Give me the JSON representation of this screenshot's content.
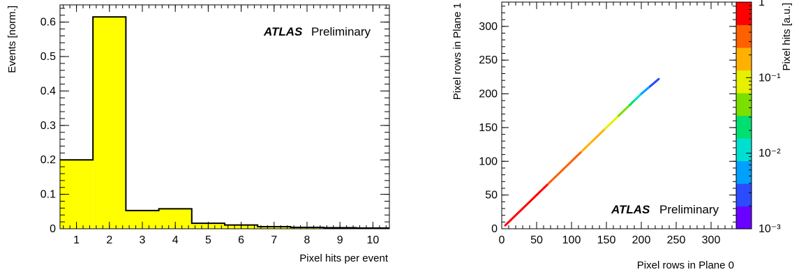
{
  "chart_data": [
    {
      "type": "bar",
      "xlabel": "Pixel hits per event",
      "ylabel": "Events [norm.]",
      "xlim": [
        0.5,
        10.5
      ],
      "ylim": [
        0,
        0.65
      ],
      "x_ticks": [
        1,
        2,
        3,
        4,
        5,
        6,
        7,
        8,
        9,
        10
      ],
      "y_ticks": [
        0,
        0.1,
        0.2,
        0.3,
        0.4,
        0.5,
        0.6
      ],
      "categories": [
        1,
        2,
        3,
        4,
        5,
        6,
        7,
        8,
        9,
        10
      ],
      "values": [
        0.2,
        0.615,
        0.053,
        0.058,
        0.016,
        0.011,
        0.006,
        0.004,
        0.003,
        0.002
      ],
      "fill_color": "#ffff00",
      "edge_color": "#000000",
      "label_bold": "ATLAS",
      "label_text": "Preliminary"
    },
    {
      "type": "heatmap",
      "xlabel": "Pixel rows in Plane 0",
      "ylabel": "Pixel rows in Plane 1",
      "zlabel": "Pixel hits [a.u.]",
      "xlim": [
        0,
        336
      ],
      "ylim": [
        0,
        336
      ],
      "zlim": [
        0.001,
        1
      ],
      "z_log": true,
      "x_ticks": [
        0,
        50,
        100,
        150,
        200,
        250,
        300
      ],
      "y_ticks": [
        0,
        50,
        100,
        150,
        200,
        250,
        300
      ],
      "z_ticks": [
        "1",
        "10⁻¹",
        "10⁻²",
        "10⁻³"
      ],
      "colormap": [
        "#6a00ff",
        "#2b4bff",
        "#00a0ff",
        "#00e0d0",
        "#00e070",
        "#7be000",
        "#e6f000",
        "#ffb000",
        "#ff6000",
        "#ff0000"
      ],
      "diagonal_points": [
        {
          "x": 5,
          "y": 5,
          "z": 0.8
        },
        {
          "x": 50,
          "y": 50,
          "z": 0.6
        },
        {
          "x": 100,
          "y": 100,
          "z": 0.35
        },
        {
          "x": 150,
          "y": 150,
          "z": 0.12
        },
        {
          "x": 180,
          "y": 180,
          "z": 0.04
        },
        {
          "x": 200,
          "y": 200,
          "z": 0.008
        },
        {
          "x": 225,
          "y": 222,
          "z": 0.002
        }
      ],
      "label_bold": "ATLAS",
      "label_text": "Preliminary"
    }
  ]
}
